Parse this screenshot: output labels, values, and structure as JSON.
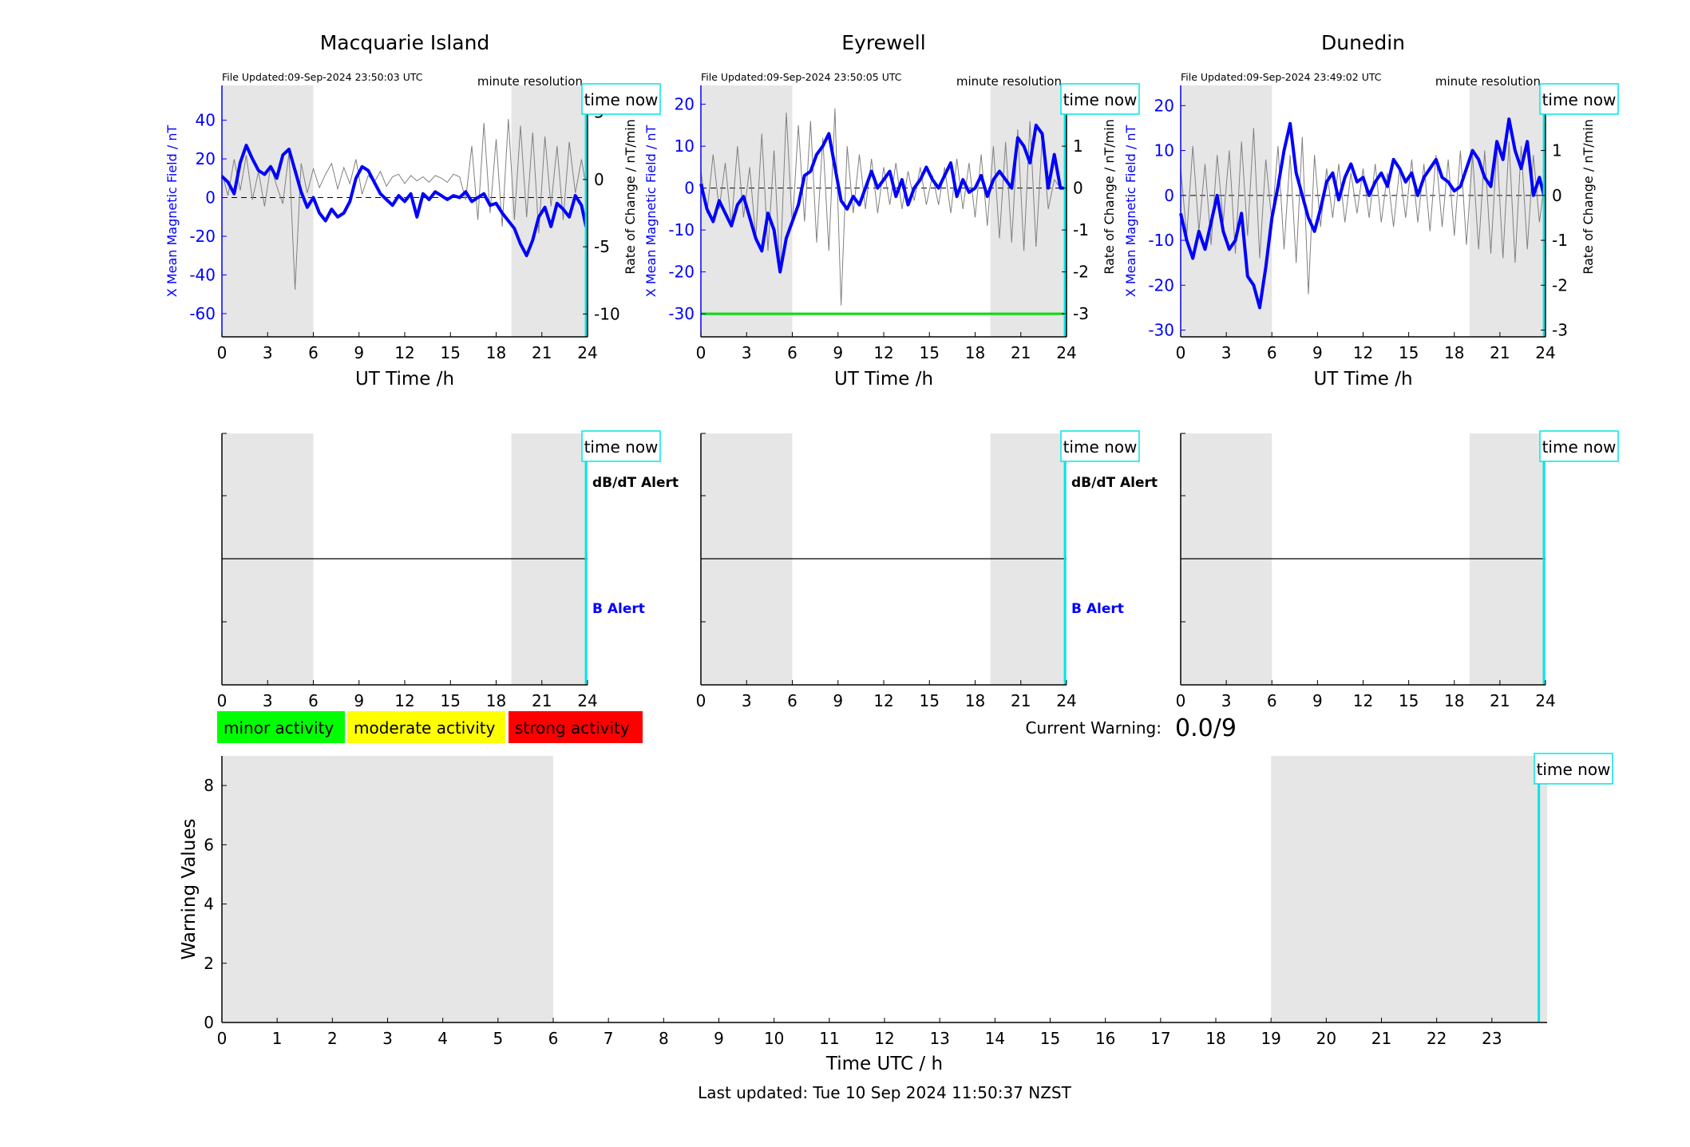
{
  "stations": [
    {
      "title": "Macquarie Island",
      "file_updated": "File Updated:09-Sep-2024 23:50:03 UTC",
      "resolution": "minute resolution",
      "has_dbdt": true
    },
    {
      "title": "Eyrewell",
      "file_updated": "File Updated:09-Sep-2024 23:50:05 UTC",
      "resolution": "minute resolution",
      "has_dbdt": true
    },
    {
      "title": "Dunedin",
      "file_updated": "File Updated:09-Sep-2024 23:49:02 UTC",
      "resolution": "minute resolution",
      "has_dbdt": false
    }
  ],
  "labels": {
    "time_now": "time now",
    "x_axis": "UT Time /h",
    "y_left": "X Mean Magnetic Field / nT",
    "y_right": "Rate of Change / nT/min",
    "dbdt_alert": "dB/dT Alert",
    "b_alert": "B Alert",
    "current_warning_label": "Current Warning:",
    "current_warning_value": "0.0/9",
    "warning_ylabel": "Warning Values",
    "warning_xlabel": "Time UTC / h",
    "last_updated": "Last updated: Tue 10 Sep 2024 11:50:37 NZST"
  },
  "legend": [
    {
      "label": "minor activity",
      "color": "#00ff00"
    },
    {
      "label": "moderate activity",
      "color": "#ffff00"
    },
    {
      "label": "strong activity",
      "color": "#ff0000"
    }
  ],
  "colors": {
    "field": "#0000ff",
    "rate": "#808080",
    "now": "#00e5e5",
    "night": "#e6e6e6",
    "threshold": "#00dd00"
  },
  "chart_data": [
    {
      "type": "line",
      "title": "Macquarie Island",
      "xlabel": "UT Time /h",
      "ylabel": "X Mean Magnetic Field / nT",
      "y2label": "Rate of Change / nT/min",
      "xlim": [
        0,
        24
      ],
      "xticks": [
        0,
        3,
        6,
        9,
        12,
        15,
        18,
        21,
        24
      ],
      "ylim": [
        -72,
        58
      ],
      "yticks": [
        -60,
        -40,
        -20,
        0,
        20,
        40
      ],
      "y2lim": [
        -11.7,
        7.0
      ],
      "y2ticks": [
        -10,
        -5,
        0,
        5
      ],
      "night": [
        [
          0,
          6
        ],
        [
          19,
          24
        ]
      ],
      "now": 23.9,
      "series": [
        {
          "role": "field",
          "x": [
            0,
            0.4,
            0.8,
            1.2,
            1.6,
            2.0,
            2.4,
            2.8,
            3.2,
            3.6,
            4.0,
            4.4,
            4.8,
            5.2,
            5.6,
            6.0,
            6.4,
            6.8,
            7.2,
            7.6,
            8.0,
            8.4,
            8.8,
            9.2,
            9.6,
            10.0,
            10.4,
            10.8,
            11.2,
            11.6,
            12.0,
            12.4,
            12.8,
            13.2,
            13.6,
            14.0,
            14.4,
            14.8,
            15.2,
            15.6,
            16.0,
            16.4,
            16.8,
            17.2,
            17.6,
            18.0,
            18.4,
            18.8,
            19.2,
            19.6,
            20.0,
            20.4,
            20.8,
            21.2,
            21.6,
            22.0,
            22.4,
            22.8,
            23.2,
            23.6,
            23.9
          ],
          "values": [
            11,
            8,
            2,
            18,
            27,
            20,
            14,
            12,
            16,
            10,
            22,
            25,
            14,
            3,
            -5,
            0,
            -8,
            -12,
            -6,
            -10,
            -8,
            -2,
            10,
            16,
            14,
            8,
            2,
            -1,
            -4,
            1,
            -2,
            2,
            -10,
            2,
            -1,
            3,
            1,
            -1,
            1,
            0,
            3,
            -2,
            0,
            2,
            -4,
            -3,
            -8,
            -12,
            -16,
            -24,
            -30,
            -22,
            -10,
            -5,
            -15,
            -3,
            -6,
            -10,
            1,
            -4,
            -15
          ]
        },
        {
          "role": "rate",
          "x": [
            0,
            0.4,
            0.8,
            1.2,
            1.6,
            2.0,
            2.4,
            2.8,
            3.2,
            3.6,
            4.0,
            4.4,
            4.8,
            5.2,
            5.6,
            6.0,
            6.4,
            6.8,
            7.2,
            7.6,
            8.0,
            8.4,
            8.8,
            9.2,
            9.6,
            10.0,
            10.4,
            10.8,
            11.2,
            11.6,
            12.0,
            12.4,
            12.8,
            13.2,
            13.6,
            14.0,
            14.4,
            14.8,
            15.2,
            15.6,
            16.0,
            16.4,
            16.8,
            17.2,
            17.6,
            18.0,
            18.4,
            18.8,
            19.2,
            19.6,
            20.0,
            20.4,
            20.8,
            21.2,
            21.6,
            22.0,
            22.4,
            22.8,
            23.2,
            23.6,
            23.9
          ],
          "values": [
            0.5,
            -1.2,
            1.5,
            -0.8,
            1.8,
            -1.5,
            0.6,
            -2.0,
            1.0,
            -0.5,
            -1.8,
            2.0,
            -8.2,
            1.2,
            -1.0,
            0.8,
            -0.6,
            0.4,
            1.2,
            -0.7,
            0.9,
            -0.3,
            1.5,
            -1.1,
            0.3,
            -0.2,
            0.6,
            -0.5,
            0.2,
            0.4,
            -0.3,
            0.3,
            -0.1,
            0.2,
            -0.2,
            0.3,
            0.1,
            -0.2,
            0.4,
            0.2,
            -1.5,
            2.5,
            -3.0,
            4.2,
            -2.5,
            3.0,
            -3.5,
            4.5,
            -3.0,
            4.0,
            -2.8,
            3.5,
            -4.0,
            3.2,
            -2.0,
            2.5,
            -3.0,
            2.8,
            -1.0,
            1.5,
            -0.5
          ]
        }
      ]
    },
    {
      "type": "line",
      "title": "Eyrewell",
      "xlabel": "UT Time /h",
      "ylabel": "X Mean Magnetic Field / nT",
      "y2label": "Rate of Change / nT/min",
      "xlim": [
        0,
        24
      ],
      "xticks": [
        0,
        3,
        6,
        9,
        12,
        15,
        18,
        21,
        24
      ],
      "ylim": [
        -35.5,
        24.5
      ],
      "yticks": [
        -30,
        -20,
        -10,
        0,
        10,
        20
      ],
      "y2lim": [
        -3.55,
        2.45
      ],
      "y2ticks": [
        -3,
        -2,
        -1,
        0,
        1,
        2
      ],
      "night": [
        [
          0,
          6
        ],
        [
          19,
          24
        ]
      ],
      "now": 23.9,
      "threshold": -30,
      "series": [
        {
          "role": "field",
          "x": [
            0,
            0.4,
            0.8,
            1.2,
            1.6,
            2.0,
            2.4,
            2.8,
            3.2,
            3.6,
            4.0,
            4.4,
            4.8,
            5.2,
            5.6,
            6.0,
            6.4,
            6.8,
            7.2,
            7.6,
            8.0,
            8.4,
            8.8,
            9.2,
            9.6,
            10.0,
            10.4,
            10.8,
            11.2,
            11.6,
            12.0,
            12.4,
            12.8,
            13.2,
            13.6,
            14.0,
            14.4,
            14.8,
            15.2,
            15.6,
            16.0,
            16.4,
            16.8,
            17.2,
            17.6,
            18.0,
            18.4,
            18.8,
            19.2,
            19.6,
            20.0,
            20.4,
            20.8,
            21.2,
            21.6,
            22.0,
            22.4,
            22.8,
            23.2,
            23.6,
            24.0
          ],
          "values": [
            1,
            -5,
            -8,
            -3,
            -6,
            -9,
            -4,
            -2,
            -7,
            -12,
            -15,
            -6,
            -10,
            -20,
            -12,
            -8,
            -4,
            3,
            4,
            8,
            10,
            13,
            5,
            -3,
            -5,
            -2,
            -4,
            0,
            4,
            0,
            2,
            4,
            -2,
            2,
            -4,
            0,
            2,
            5,
            2,
            0,
            3,
            6,
            -2,
            2,
            -1,
            0,
            3,
            -2,
            2,
            4,
            2,
            0,
            12,
            10,
            6,
            15,
            13,
            0,
            8,
            0,
            0
          ]
        },
        {
          "role": "rate",
          "x": [
            0,
            0.4,
            0.8,
            1.2,
            1.6,
            2.0,
            2.4,
            2.8,
            3.2,
            3.6,
            4.0,
            4.4,
            4.8,
            5.2,
            5.6,
            6.0,
            6.4,
            6.8,
            7.2,
            7.6,
            8.0,
            8.4,
            8.8,
            9.2,
            9.6,
            10.0,
            10.4,
            10.8,
            11.2,
            11.6,
            12.0,
            12.4,
            12.8,
            13.2,
            13.6,
            14.0,
            14.4,
            14.8,
            15.2,
            15.6,
            16.0,
            16.4,
            16.8,
            17.2,
            17.6,
            18.0,
            18.4,
            18.8,
            19.2,
            19.6,
            20.0,
            20.4,
            20.8,
            21.2,
            21.6,
            22.0,
            22.4,
            22.8,
            23.2,
            23.6,
            24.0
          ],
          "values": [
            0.4,
            -0.6,
            0.8,
            -0.5,
            0.6,
            -0.9,
            1.0,
            -0.7,
            0.5,
            -1.2,
            1.3,
            -1.5,
            0.9,
            -2.0,
            1.8,
            -0.9,
            1.5,
            -0.8,
            1.6,
            -1.3,
            1.2,
            -1.5,
            1.9,
            -2.8,
            1.0,
            -0.6,
            0.8,
            -0.5,
            0.7,
            -0.6,
            0.5,
            -0.4,
            0.6,
            -0.5,
            0.4,
            -0.3,
            0.5,
            -0.4,
            0.3,
            -0.4,
            0.5,
            -0.6,
            0.7,
            -0.5,
            0.6,
            -0.7,
            0.8,
            -0.9,
            1.0,
            -1.2,
            1.1,
            -1.3,
            1.4,
            -1.5,
            1.6,
            -1.4,
            1.2,
            -0.5,
            0.2,
            0.0,
            0.0
          ]
        }
      ]
    },
    {
      "type": "line",
      "title": "Dunedin",
      "xlabel": "UT Time /h",
      "ylabel": "X Mean Magnetic Field / nT",
      "y2label": "Rate of Change / nT/min",
      "xlim": [
        0,
        24
      ],
      "xticks": [
        0,
        3,
        6,
        9,
        12,
        15,
        18,
        21,
        24
      ],
      "ylim": [
        -31.5,
        24.5
      ],
      "yticks": [
        -30,
        -20,
        -10,
        0,
        10,
        20
      ],
      "y2lim": [
        -3.15,
        2.45
      ],
      "y2ticks": [
        -3,
        -2,
        -1,
        0,
        1,
        2
      ],
      "night": [
        [
          0,
          6
        ],
        [
          19,
          24
        ]
      ],
      "now": 23.9,
      "series": [
        {
          "role": "field",
          "x": [
            0,
            0.4,
            0.8,
            1.2,
            1.6,
            2.0,
            2.4,
            2.8,
            3.2,
            3.6,
            4.0,
            4.4,
            4.8,
            5.2,
            5.6,
            6.0,
            6.4,
            6.8,
            7.2,
            7.6,
            8.0,
            8.4,
            8.8,
            9.2,
            9.6,
            10.0,
            10.4,
            10.8,
            11.2,
            11.6,
            12.0,
            12.4,
            12.8,
            13.2,
            13.6,
            14.0,
            14.4,
            14.8,
            15.2,
            15.6,
            16.0,
            16.4,
            16.8,
            17.2,
            17.6,
            18.0,
            18.4,
            18.8,
            19.2,
            19.6,
            20.0,
            20.4,
            20.8,
            21.2,
            21.6,
            22.0,
            22.4,
            22.8,
            23.2,
            23.6,
            23.9
          ],
          "values": [
            -4,
            -10,
            -14,
            -8,
            -12,
            -6,
            0,
            -8,
            -12,
            -10,
            -4,
            -18,
            -20,
            -25,
            -16,
            -5,
            2,
            10,
            16,
            5,
            0,
            -5,
            -8,
            -3,
            3,
            5,
            -1,
            4,
            7,
            3,
            4,
            0,
            3,
            5,
            2,
            8,
            6,
            3,
            5,
            0,
            4,
            6,
            8,
            4,
            3,
            1,
            2,
            6,
            10,
            8,
            4,
            2,
            12,
            8,
            17,
            10,
            6,
            12,
            0,
            4,
            0
          ]
        },
        {
          "role": "rate",
          "x": [
            0,
            0.4,
            0.8,
            1.2,
            1.6,
            2.0,
            2.4,
            2.8,
            3.2,
            3.6,
            4.0,
            4.4,
            4.8,
            5.2,
            5.6,
            6.0,
            6.4,
            6.8,
            7.2,
            7.6,
            8.0,
            8.4,
            8.8,
            9.2,
            9.6,
            10.0,
            10.4,
            10.8,
            11.2,
            11.6,
            12.0,
            12.4,
            12.8,
            13.2,
            13.6,
            14.0,
            14.4,
            14.8,
            15.2,
            15.6,
            16.0,
            16.4,
            16.8,
            17.2,
            17.6,
            18.0,
            18.4,
            18.8,
            19.2,
            19.6,
            20.0,
            20.4,
            20.8,
            21.2,
            21.6,
            22.0,
            22.4,
            22.8,
            23.2,
            23.6,
            23.9
          ],
          "values": [
            0.6,
            -0.9,
            1.1,
            -0.8,
            0.7,
            -1.1,
            0.9,
            -0.6,
            1.0,
            -1.3,
            1.2,
            -0.9,
            1.5,
            -1.4,
            0.8,
            -0.6,
            1.1,
            -1.2,
            0.9,
            -1.5,
            1.3,
            -2.2,
            0.9,
            -0.7,
            0.6,
            -0.5,
            0.7,
            -0.6,
            0.5,
            -0.4,
            0.6,
            -0.5,
            0.7,
            -0.6,
            0.5,
            -0.7,
            0.6,
            -0.5,
            0.8,
            -0.6,
            0.7,
            -0.8,
            0.9,
            -0.7,
            0.8,
            -0.9,
            1.0,
            -1.1,
            0.9,
            -1.2,
            1.0,
            -1.3,
            1.1,
            -1.4,
            1.2,
            -1.5,
            1.1,
            -1.2,
            0.9,
            -0.6,
            0.2
          ]
        }
      ]
    },
    {
      "type": "line",
      "title": "",
      "xlabel": "Time UTC / h",
      "ylabel": "Warning Values",
      "xlim": [
        0,
        24
      ],
      "xticks": [
        0,
        1,
        2,
        3,
        4,
        5,
        6,
        7,
        8,
        9,
        10,
        11,
        12,
        13,
        14,
        15,
        16,
        17,
        18,
        19,
        20,
        21,
        22,
        23
      ],
      "ylim": [
        0,
        9
      ],
      "yticks": [
        0,
        2,
        4,
        6,
        8
      ],
      "night": [
        [
          0,
          6
        ],
        [
          19,
          24
        ]
      ],
      "now": 23.85,
      "series": [
        {
          "role": "warning",
          "x": [],
          "values": []
        }
      ]
    }
  ]
}
